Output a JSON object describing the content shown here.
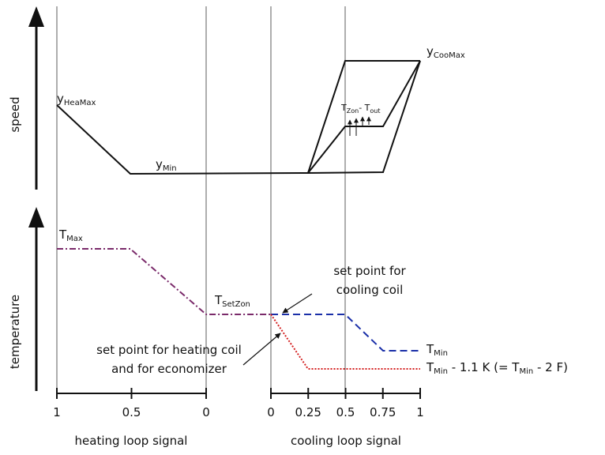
{
  "axes": {
    "speed": "speed",
    "temperature": "temperature"
  },
  "speed_labels": {
    "hea_max": {
      "base": "y",
      "sub": "HeaMax"
    },
    "min": {
      "base": "y",
      "sub": "Min"
    },
    "coo_max": {
      "base": "y",
      "sub": "CooMax"
    },
    "zon_out": {
      "base1": "T",
      "sub1": "Zon",
      "mid": "- T",
      "sub2": "out"
    }
  },
  "temperature_labels": {
    "max": {
      "base": "T",
      "sub": "Max"
    },
    "set_zon": {
      "base": "T",
      "sub": "SetZon"
    },
    "min": {
      "base": "T",
      "sub": "Min"
    },
    "min_offset": {
      "base1": "T",
      "sub1": "Min",
      "mid": " - 1.1 K (= T",
      "sub2": "Min",
      "end": " - 2 F)"
    }
  },
  "annotations": {
    "cooling": [
      "set point for",
      "cooling coil"
    ],
    "heating": [
      "set point for heating coil",
      "and for economizer"
    ]
  },
  "heating_axis": {
    "ticks": [
      "1",
      "0.5",
      "0"
    ],
    "label": "heating loop signal"
  },
  "cooling_axis": {
    "ticks": [
      "0",
      "0.25",
      "0.5",
      "0.75",
      "1"
    ],
    "label": "cooling loop signal"
  }
}
